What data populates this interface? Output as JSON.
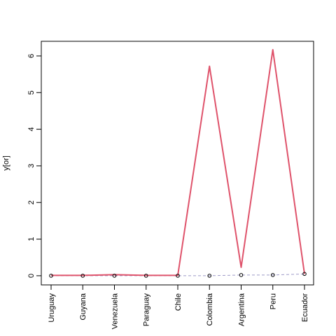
{
  "chart_data": {
    "type": "line",
    "ylabel": "y[or]",
    "xlabel": "",
    "title": "",
    "categories": [
      "Uruguay",
      "Guyana",
      "Venezuela",
      "Paraguay",
      "Chile",
      "Colombia",
      "Argentina",
      "Peru",
      "Ecuador"
    ],
    "ylim": [
      -0.25,
      6.4
    ],
    "yticks": [
      0,
      1,
      2,
      3,
      4,
      5,
      6
    ],
    "series": [
      {
        "values": [
          0.01,
          0.01,
          0.03,
          0.01,
          0.01,
          5.72,
          0.23,
          6.17,
          0.05
        ],
        "color": "#DF536B",
        "style": "solid",
        "markers": false
      },
      {
        "values": [
          0.0,
          0.0,
          0.0,
          0.0,
          0.0,
          0.0,
          0.02,
          0.02,
          0.05
        ],
        "color": "#9E9AC8",
        "style": "dashed",
        "markers": true
      }
    ],
    "grid": false,
    "legend": "none"
  }
}
